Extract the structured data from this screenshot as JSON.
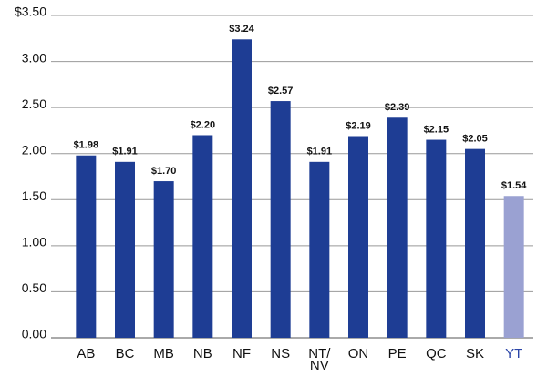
{
  "chart_data": {
    "type": "bar",
    "categories": [
      "AB",
      "BC",
      "MB",
      "NB",
      "NF",
      "NS",
      "NT/\nNV",
      "ON",
      "PE",
      "QC",
      "SK",
      "YT"
    ],
    "values": [
      1.98,
      1.91,
      1.7,
      2.2,
      3.24,
      2.57,
      1.91,
      2.19,
      2.39,
      2.15,
      2.05,
      1.54
    ],
    "value_labels": [
      "$1.98",
      "$1.91",
      "$1.70",
      "$2.20",
      "$3.24",
      "$2.57",
      "$1.91",
      "$2.19",
      "$2.39",
      "$2.15",
      "$2.05",
      "$1.54"
    ],
    "colors": [
      "#1e3d94",
      "#1e3d94",
      "#1e3d94",
      "#1e3d94",
      "#1e3d94",
      "#1e3d94",
      "#1e3d94",
      "#1e3d94",
      "#1e3d94",
      "#1e3d94",
      "#1e3d94",
      "#9aa1d2"
    ],
    "ylim": [
      0,
      3.5
    ],
    "yticks": [
      {
        "value": 0,
        "label": "0.00"
      },
      {
        "value": 0.5,
        "label": "0.50"
      },
      {
        "value": 1,
        "label": "1.00"
      },
      {
        "value": 1.5,
        "label": "1.50"
      },
      {
        "value": 2,
        "label": "2.00"
      },
      {
        "value": 2.5,
        "label": "2.50"
      },
      {
        "value": 3,
        "label": "3.00"
      },
      {
        "value": 3.5,
        "label": "$3.50"
      }
    ],
    "grid": true
  }
}
